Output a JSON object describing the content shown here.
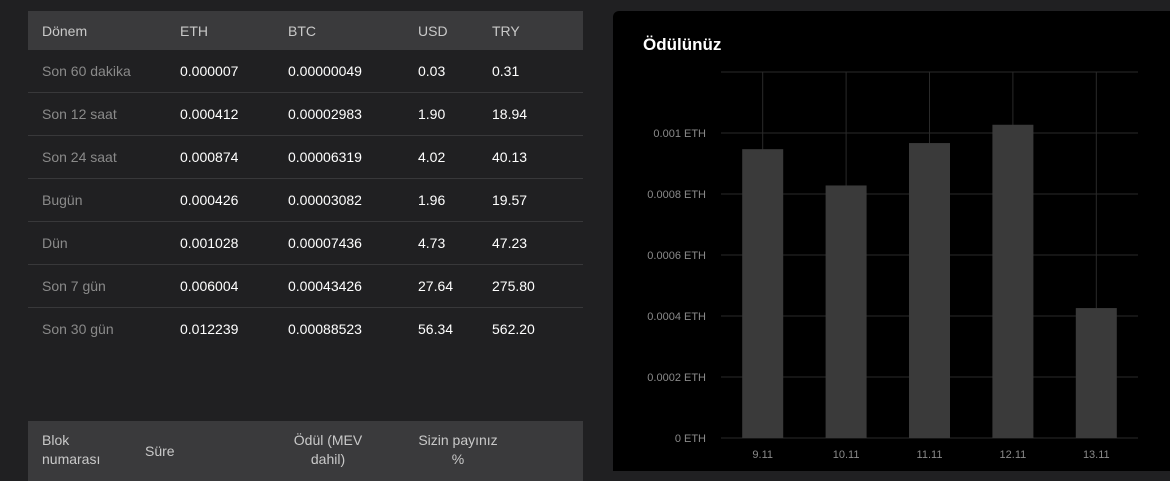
{
  "table": {
    "headers": [
      "Dönem",
      "ETH",
      "BTC",
      "USD",
      "TRY"
    ],
    "rows": [
      {
        "period": "Son 60 dakika",
        "eth": "0.000007",
        "btc": "0.00000049",
        "usd": "0.03",
        "try": "0.31"
      },
      {
        "period": "Son 12 saat",
        "eth": "0.000412",
        "btc": "0.00002983",
        "usd": "1.90",
        "try": "18.94"
      },
      {
        "period": "Son 24 saat",
        "eth": "0.000874",
        "btc": "0.00006319",
        "usd": "4.02",
        "try": "40.13"
      },
      {
        "period": "Bugün",
        "eth": "0.000426",
        "btc": "0.00003082",
        "usd": "1.96",
        "try": "19.57"
      },
      {
        "period": "Dün",
        "eth": "0.001028",
        "btc": "0.00007436",
        "usd": "4.73",
        "try": "47.23"
      },
      {
        "period": "Son 7 gün",
        "eth": "0.006004",
        "btc": "0.00043426",
        "usd": "27.64",
        "try": "275.80"
      },
      {
        "period": "Son 30 gün",
        "eth": "0.012239",
        "btc": "0.00088523",
        "usd": "56.34",
        "try": "562.20"
      }
    ]
  },
  "blocks": {
    "headers": {
      "block": "Blok numarası",
      "time": "Süre",
      "reward": "Ödül (MEV dahil)",
      "share": "Sizin payınız %"
    }
  },
  "chart_data": {
    "type": "bar",
    "title": "Ödülünüz",
    "categories": [
      "9.11",
      "10.11",
      "11.11",
      "12.11",
      "13.11"
    ],
    "values": [
      0.000947,
      0.000828,
      0.000967,
      0.001027,
      0.000426
    ],
    "y_ticks": [
      "0 ETH",
      "0.0002 ETH",
      "0.0004 ETH",
      "0.0006 ETH",
      "0.0008 ETH",
      "0.001 ETH"
    ],
    "ylim": [
      0,
      0.0012
    ],
    "grid": true,
    "bar_color": "#3a3a3a",
    "grid_color": "#2a2a2a"
  }
}
